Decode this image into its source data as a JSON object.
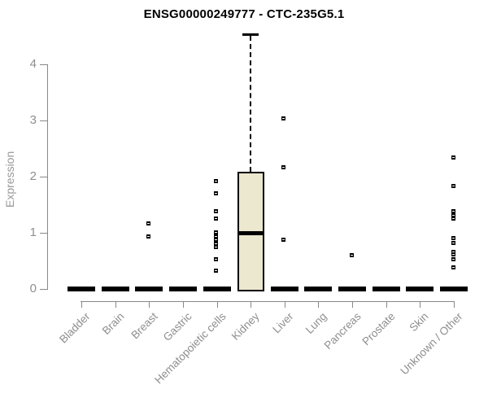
{
  "chart_data": {
    "type": "boxplot",
    "title": "ENSG00000249777 - CTC-235G5.1",
    "ylabel": "Expression",
    "xlabel": "",
    "ylim": [
      0,
      4.6
    ],
    "yticks": [
      0,
      1,
      2,
      3,
      4
    ],
    "grid": false,
    "legend": null,
    "categories": [
      "Bladder",
      "Brain",
      "Breast",
      "Gastric",
      "Hematopoietic cells",
      "Kidney",
      "Liver",
      "Lung",
      "Pancreas",
      "Prostate",
      "Skin",
      "Unknown / Other"
    ],
    "groups": [
      {
        "category": "Bladder",
        "zero_bar": true,
        "points": []
      },
      {
        "category": "Brain",
        "zero_bar": true,
        "points": []
      },
      {
        "category": "Breast",
        "zero_bar": true,
        "points": [
          1.16,
          0.94
        ]
      },
      {
        "category": "Gastric",
        "zero_bar": true,
        "points": []
      },
      {
        "category": "Hematopoietic cells",
        "zero_bar": true,
        "points": [
          1.92,
          1.71,
          1.38,
          1.26,
          1.01,
          0.94,
          0.87,
          0.8,
          0.75,
          0.53,
          0.32
        ]
      },
      {
        "category": "Kidney",
        "zero_bar": false,
        "box": {
          "lower_whisker": 0,
          "q1": 0,
          "median": 1.0,
          "q3": 2.08,
          "upper_whisker": 4.54
        },
        "points": []
      },
      {
        "category": "Liver",
        "zero_bar": true,
        "points": [
          3.03,
          2.16,
          0.87
        ]
      },
      {
        "category": "Lung",
        "zero_bar": true,
        "points": []
      },
      {
        "category": "Pancreas",
        "zero_bar": true,
        "points": [
          0.6
        ]
      },
      {
        "category": "Prostate",
        "zero_bar": true,
        "points": []
      },
      {
        "category": "Skin",
        "zero_bar": true,
        "points": []
      },
      {
        "category": "Unknown / Other",
        "zero_bar": true,
        "points": [
          2.34,
          1.84,
          1.38,
          1.31,
          1.25,
          0.91,
          0.82,
          0.66,
          0.61,
          0.53,
          0.39
        ]
      }
    ],
    "colors": {
      "box_fill": "#ECE7CF",
      "box_border": "#000000",
      "median": "#000000",
      "zero_bar": "#000000",
      "point": "#000000",
      "axis": "#888888",
      "tick_label": "#8e8e8e",
      "title": "#000000",
      "ylabel": "#999999",
      "background": "#ffffff"
    }
  }
}
